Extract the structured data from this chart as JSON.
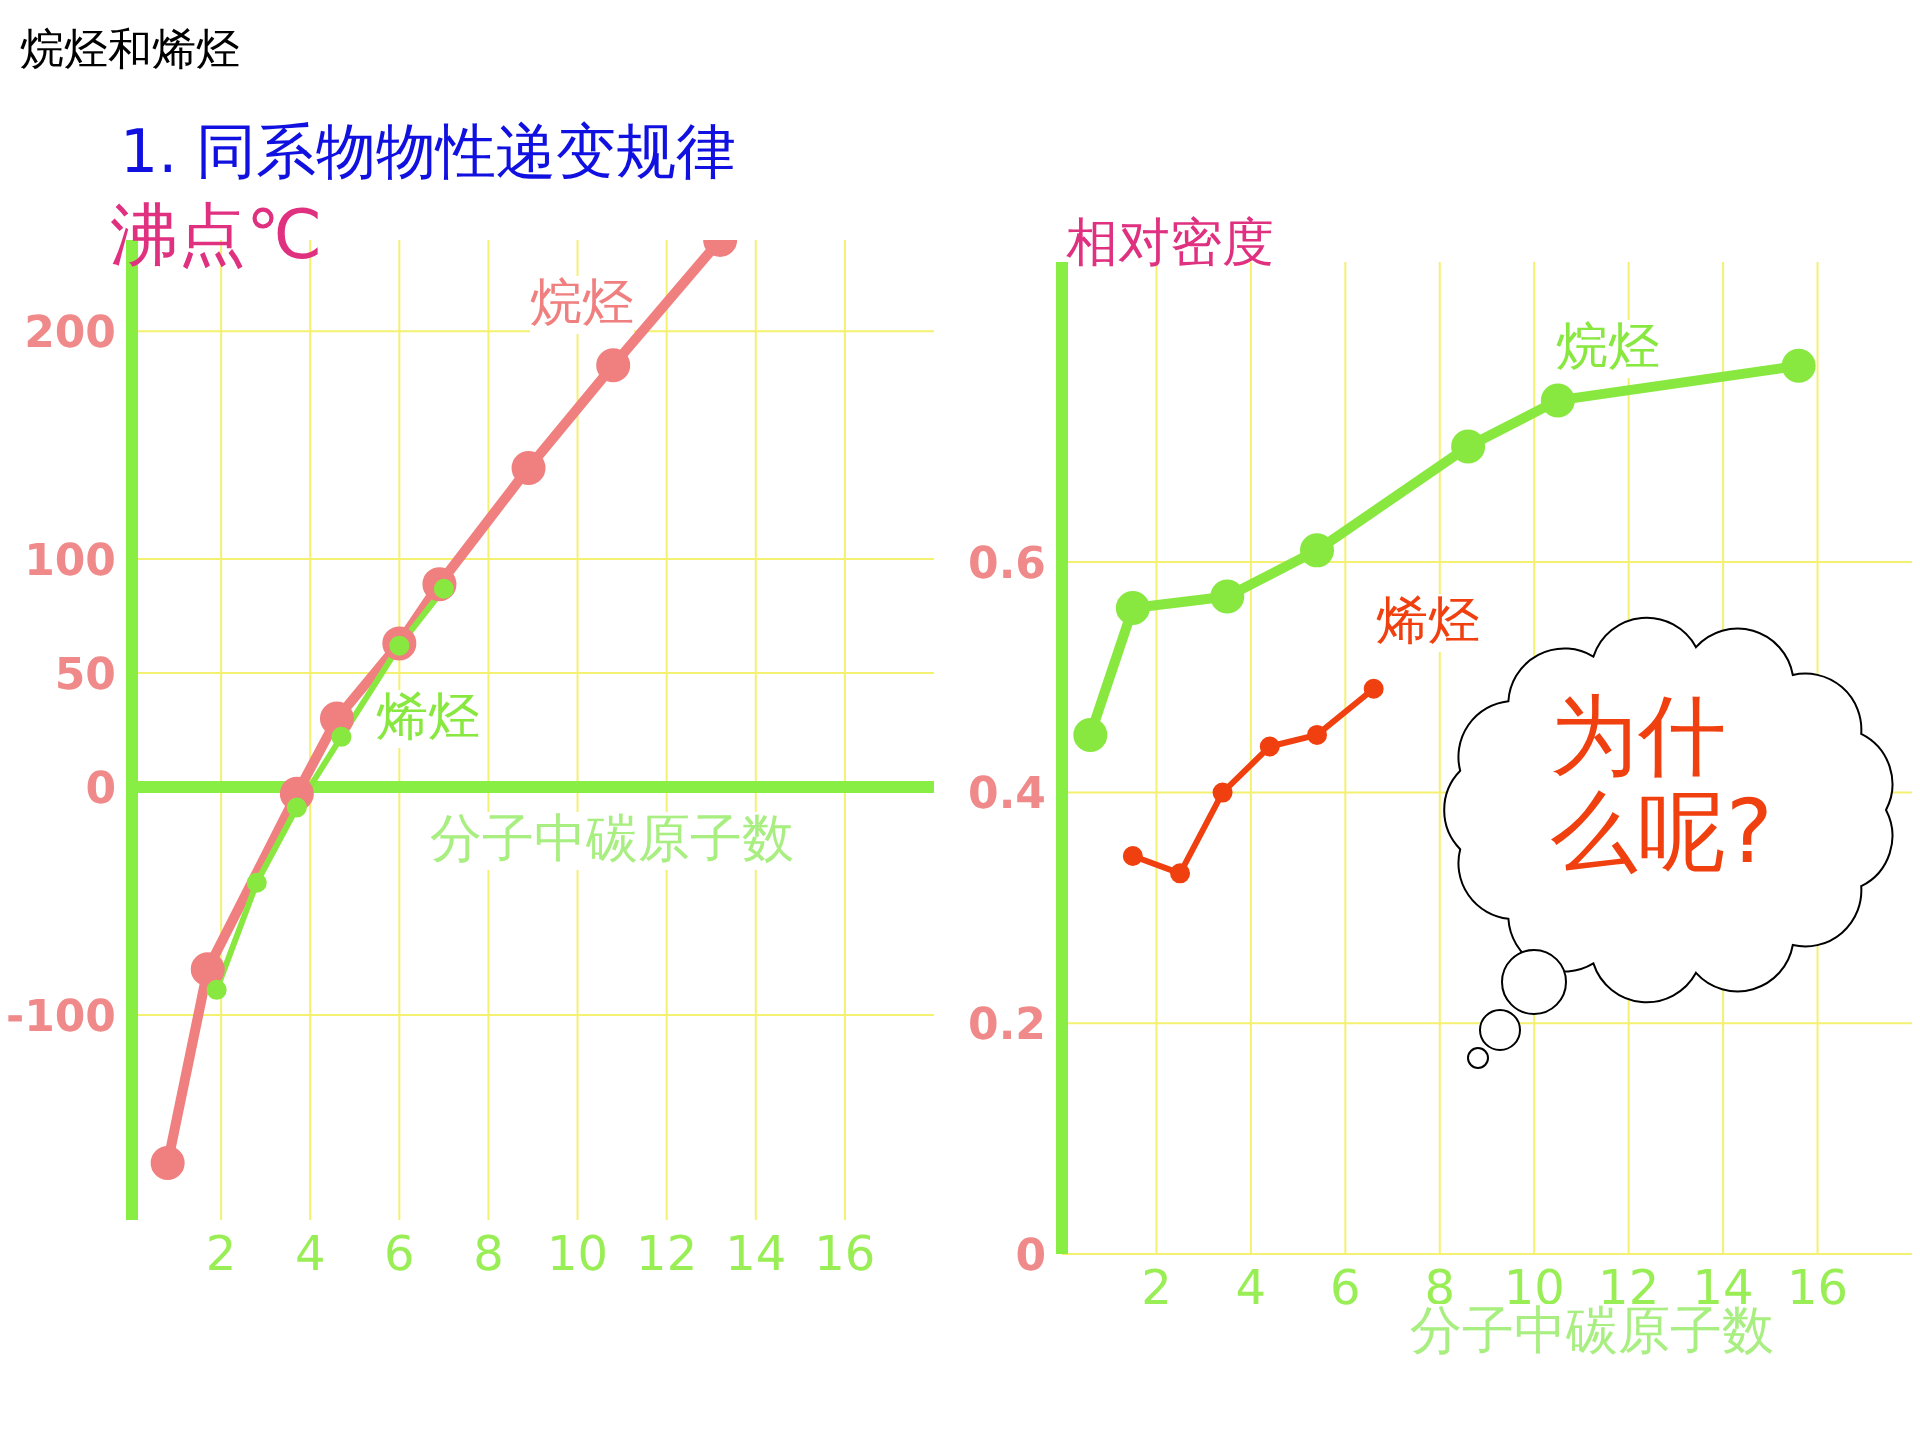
{
  "chart_data": [
    {
      "type": "line",
      "title": "烷烃和烯烃",
      "subtitle": "1. 同系物物性递变规律",
      "xlabel": "分子中碳原子数",
      "ylabel": "沸点℃",
      "xlim": [
        0,
        18
      ],
      "xticks": [
        2,
        4,
        6,
        8,
        10,
        12,
        14,
        16
      ],
      "ylim": [
        -190,
        240
      ],
      "yticks": [
        -100,
        0,
        50,
        100,
        200
      ],
      "grid": true,
      "marker": "circle",
      "line_style": "solid",
      "ref_lines": [
        {
          "axis": "y",
          "value": 0,
          "color": "#88ee44"
        }
      ],
      "series": [
        {
          "name": "烷烃",
          "color": "#f08080",
          "x": [
            0.8,
            1.7,
            3.7,
            4.6,
            6,
            6.9,
            8.9,
            10.8,
            13.2
          ],
          "values": [
            -165,
            -80,
            -3,
            30,
            63,
            89,
            140,
            185,
            240
          ]
        },
        {
          "name": "烯烃",
          "color": "#88e840",
          "x": [
            1.9,
            2.8,
            3.7,
            4.7,
            6,
            7
          ],
          "values": [
            -89,
            -42,
            -9,
            22,
            62,
            87
          ]
        }
      ]
    },
    {
      "type": "line",
      "xlabel": "分子中碳原子数",
      "ylabel": "相对密度",
      "xlim": [
        0,
        18
      ],
      "xticks": [
        2,
        4,
        6,
        8,
        10,
        12,
        14,
        16
      ],
      "ylim": [
        0,
        0.86
      ],
      "yticks": [
        0,
        0.2,
        0.4,
        0.6
      ],
      "grid": true,
      "marker": "circle",
      "line_style": "solid",
      "annotations": [
        "为什么呢?"
      ],
      "series": [
        {
          "name": "烷烃",
          "color": "#88e840",
          "x": [
            0.6,
            1.5,
            3.5,
            5.4,
            8.6,
            10.5,
            15.6
          ],
          "values": [
            0.45,
            0.56,
            0.57,
            0.61,
            0.7,
            0.74,
            0.77
          ]
        },
        {
          "name": "烯烃",
          "color": "#f04010",
          "x": [
            1.5,
            2.5,
            3.4,
            4.4,
            5.4,
            6.6
          ],
          "values": [
            0.345,
            0.33,
            0.4,
            0.44,
            0.45,
            0.49
          ]
        }
      ]
    }
  ]
}
